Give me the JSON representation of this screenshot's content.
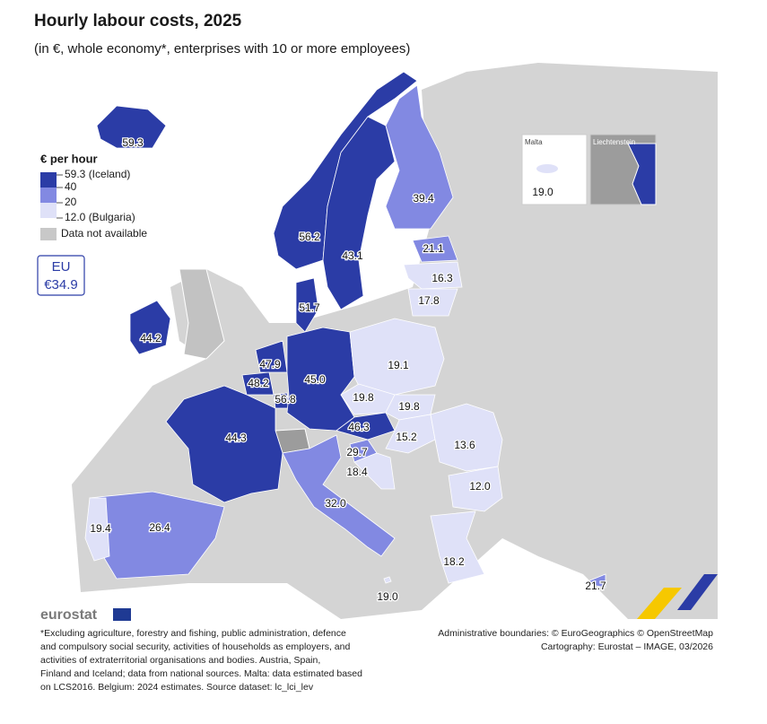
{
  "chart_data": {
    "type": "choropleth",
    "title": "Hourly labour costs, 2025",
    "subtitle": "(in €, whole economy*, enterprises with 10 or more employees)",
    "legend": {
      "title": "€ per hour",
      "items": [
        {
          "value": 59.3,
          "label": "59.3 (Iceland)"
        },
        40,
        20,
        {
          "value": 12.0,
          "label": "12.0 (Bulgaria)"
        }
      ],
      "colors": [
        "#2b3ca6",
        "#8289e2",
        "#dfe1f8"
      ],
      "na_label": "Data not available",
      "na_color": "#c8c8c8"
    },
    "eu_box": {
      "label": "EU",
      "value_label": "€34.9",
      "value": 34.9
    },
    "values": [
      59.3,
      56.2,
      43.1,
      39.4,
      21.1,
      16.3,
      17.8,
      51.7,
      44.2,
      47.9,
      48.2,
      56.8,
      45.0,
      19.1,
      19.8,
      19.8,
      46.3,
      15.2,
      13.6,
      29.7,
      18.4,
      12.0,
      44.3,
      32.0,
      26.4,
      19.4,
      18.2,
      21.7,
      19.0
    ],
    "value_labels": [
      "59.3",
      "56.2",
      "43.1",
      "39.4",
      "21.1",
      "16.3",
      "17.8",
      "51.7",
      "44.2",
      "47.9",
      "48.2",
      "56.8",
      "45.0",
      "19.1",
      "19.8",
      "19.8",
      "46.3",
      "15.2",
      "13.6",
      "29.7",
      "18.4",
      "12.0",
      "44.3",
      "32.0",
      "26.4",
      "19.4",
      "18.2",
      "21.7",
      "19.0"
    ],
    "insets": [
      {
        "title": "Malta",
        "value_index": 28
      },
      {
        "title": "Liechtenstein"
      }
    ],
    "logo": "eurostat",
    "footnote": [
      "*Excluding agriculture, forestry and fishing, public administration, defence",
      "and compulsory social security, activities of households as employers, and",
      "activities of extraterritorial organisations and bodies. Austria, Spain,",
      "Finland and Iceland; data from national sources. Malta: data estimated based",
      "on LCS2016. Belgium: 2024 estimates. Source dataset: lc_lci_lev"
    ],
    "credits": [
      "Administrative boundaries: © EuroGeographics © OpenStreetMap",
      "Cartography: Eurostat – IMAGE, 03/2026"
    ]
  }
}
